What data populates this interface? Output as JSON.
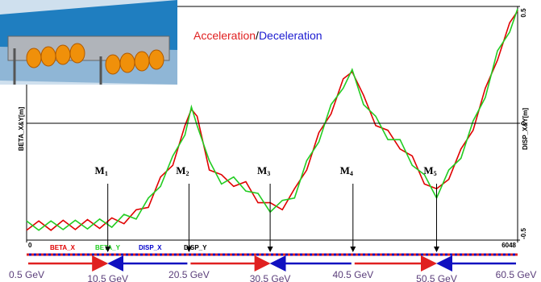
{
  "chart_data": {
    "type": "line",
    "title": [
      "Acceleration",
      "/",
      "Deceleration"
    ],
    "y_label": "BETA_X&Y[m]",
    "y2_label": "DISP_X&Y[m]",
    "xlim": [
      0,
      6048
    ],
    "xticks": [
      0,
      6048
    ],
    "ylim": [
      0,
      100
    ],
    "y2lim": [
      -0.5,
      0.5
    ],
    "y2ticks": [
      0.5,
      0,
      -0.5
    ],
    "x": [
      0,
      150,
      300,
      450,
      600,
      750,
      900,
      1050,
      1200,
      1350,
      1500,
      1650,
      1800,
      1950,
      2030,
      2100,
      2250,
      2400,
      2550,
      2700,
      2850,
      3000,
      3150,
      3300,
      3450,
      3600,
      3750,
      3900,
      4010,
      4150,
      4300,
      4450,
      4600,
      4750,
      4900,
      5050,
      5200,
      5350,
      5500,
      5650,
      5800,
      5950,
      6048
    ],
    "series": [
      {
        "name": "BETA_X",
        "color": "#e00000",
        "values": [
          4.2,
          8.2,
          4.2,
          8.5,
          4.5,
          8.8,
          5,
          9.5,
          7,
          13,
          14,
          27,
          32,
          49,
          56,
          53,
          30,
          28,
          23,
          25,
          16,
          16,
          13,
          22,
          30,
          46,
          54,
          69,
          72,
          62,
          49,
          47,
          39,
          36,
          24,
          22,
          26,
          39,
          47,
          65,
          77,
          93,
          98
        ]
      },
      {
        "name": "BETA_Y",
        "color": "#22cc22",
        "values": [
          8.2,
          4.2,
          8.2,
          4.5,
          8.5,
          4.8,
          9,
          5.5,
          11,
          9,
          18,
          23,
          36,
          45,
          57,
          49,
          34,
          24,
          27,
          21,
          20,
          12,
          17,
          18,
          34,
          42,
          58,
          65,
          73,
          58,
          53,
          43,
          43,
          32,
          28,
          18,
          30,
          35,
          51,
          61,
          81,
          89,
          99
        ]
      },
      {
        "name": "DISP_X",
        "color": "#0000cc",
        "axis": "y2",
        "x": [
          0,
          6048
        ],
        "values": [
          0,
          0
        ]
      },
      {
        "name": "DISP_Y",
        "color": "#000000",
        "axis": "y2",
        "x": [
          0,
          6048
        ],
        "values": [
          0,
          0
        ]
      }
    ],
    "markers": [
      {
        "label": "M",
        "sub": "1",
        "x": 1000
      },
      {
        "label": "M",
        "sub": "2",
        "x": 2000
      },
      {
        "label": "M",
        "sub": "3",
        "x": 3000
      },
      {
        "label": "M",
        "sub": "4",
        "x": 4020
      },
      {
        "label": "M",
        "sub": "5",
        "x": 5050
      }
    ],
    "energies": [
      {
        "label": "0.5 GeV",
        "x": 0
      },
      {
        "label": "10.5 GeV",
        "x": 1000
      },
      {
        "label": "20.5 GeV",
        "x": 2000
      },
      {
        "label": "30.5 GeV",
        "x": 3000
      },
      {
        "label": "40.5 GeV",
        "x": 4020
      },
      {
        "label": "50.5 GeV",
        "x": 5050
      },
      {
        "label": "60.5 GeV",
        "x": 6048
      }
    ]
  }
}
